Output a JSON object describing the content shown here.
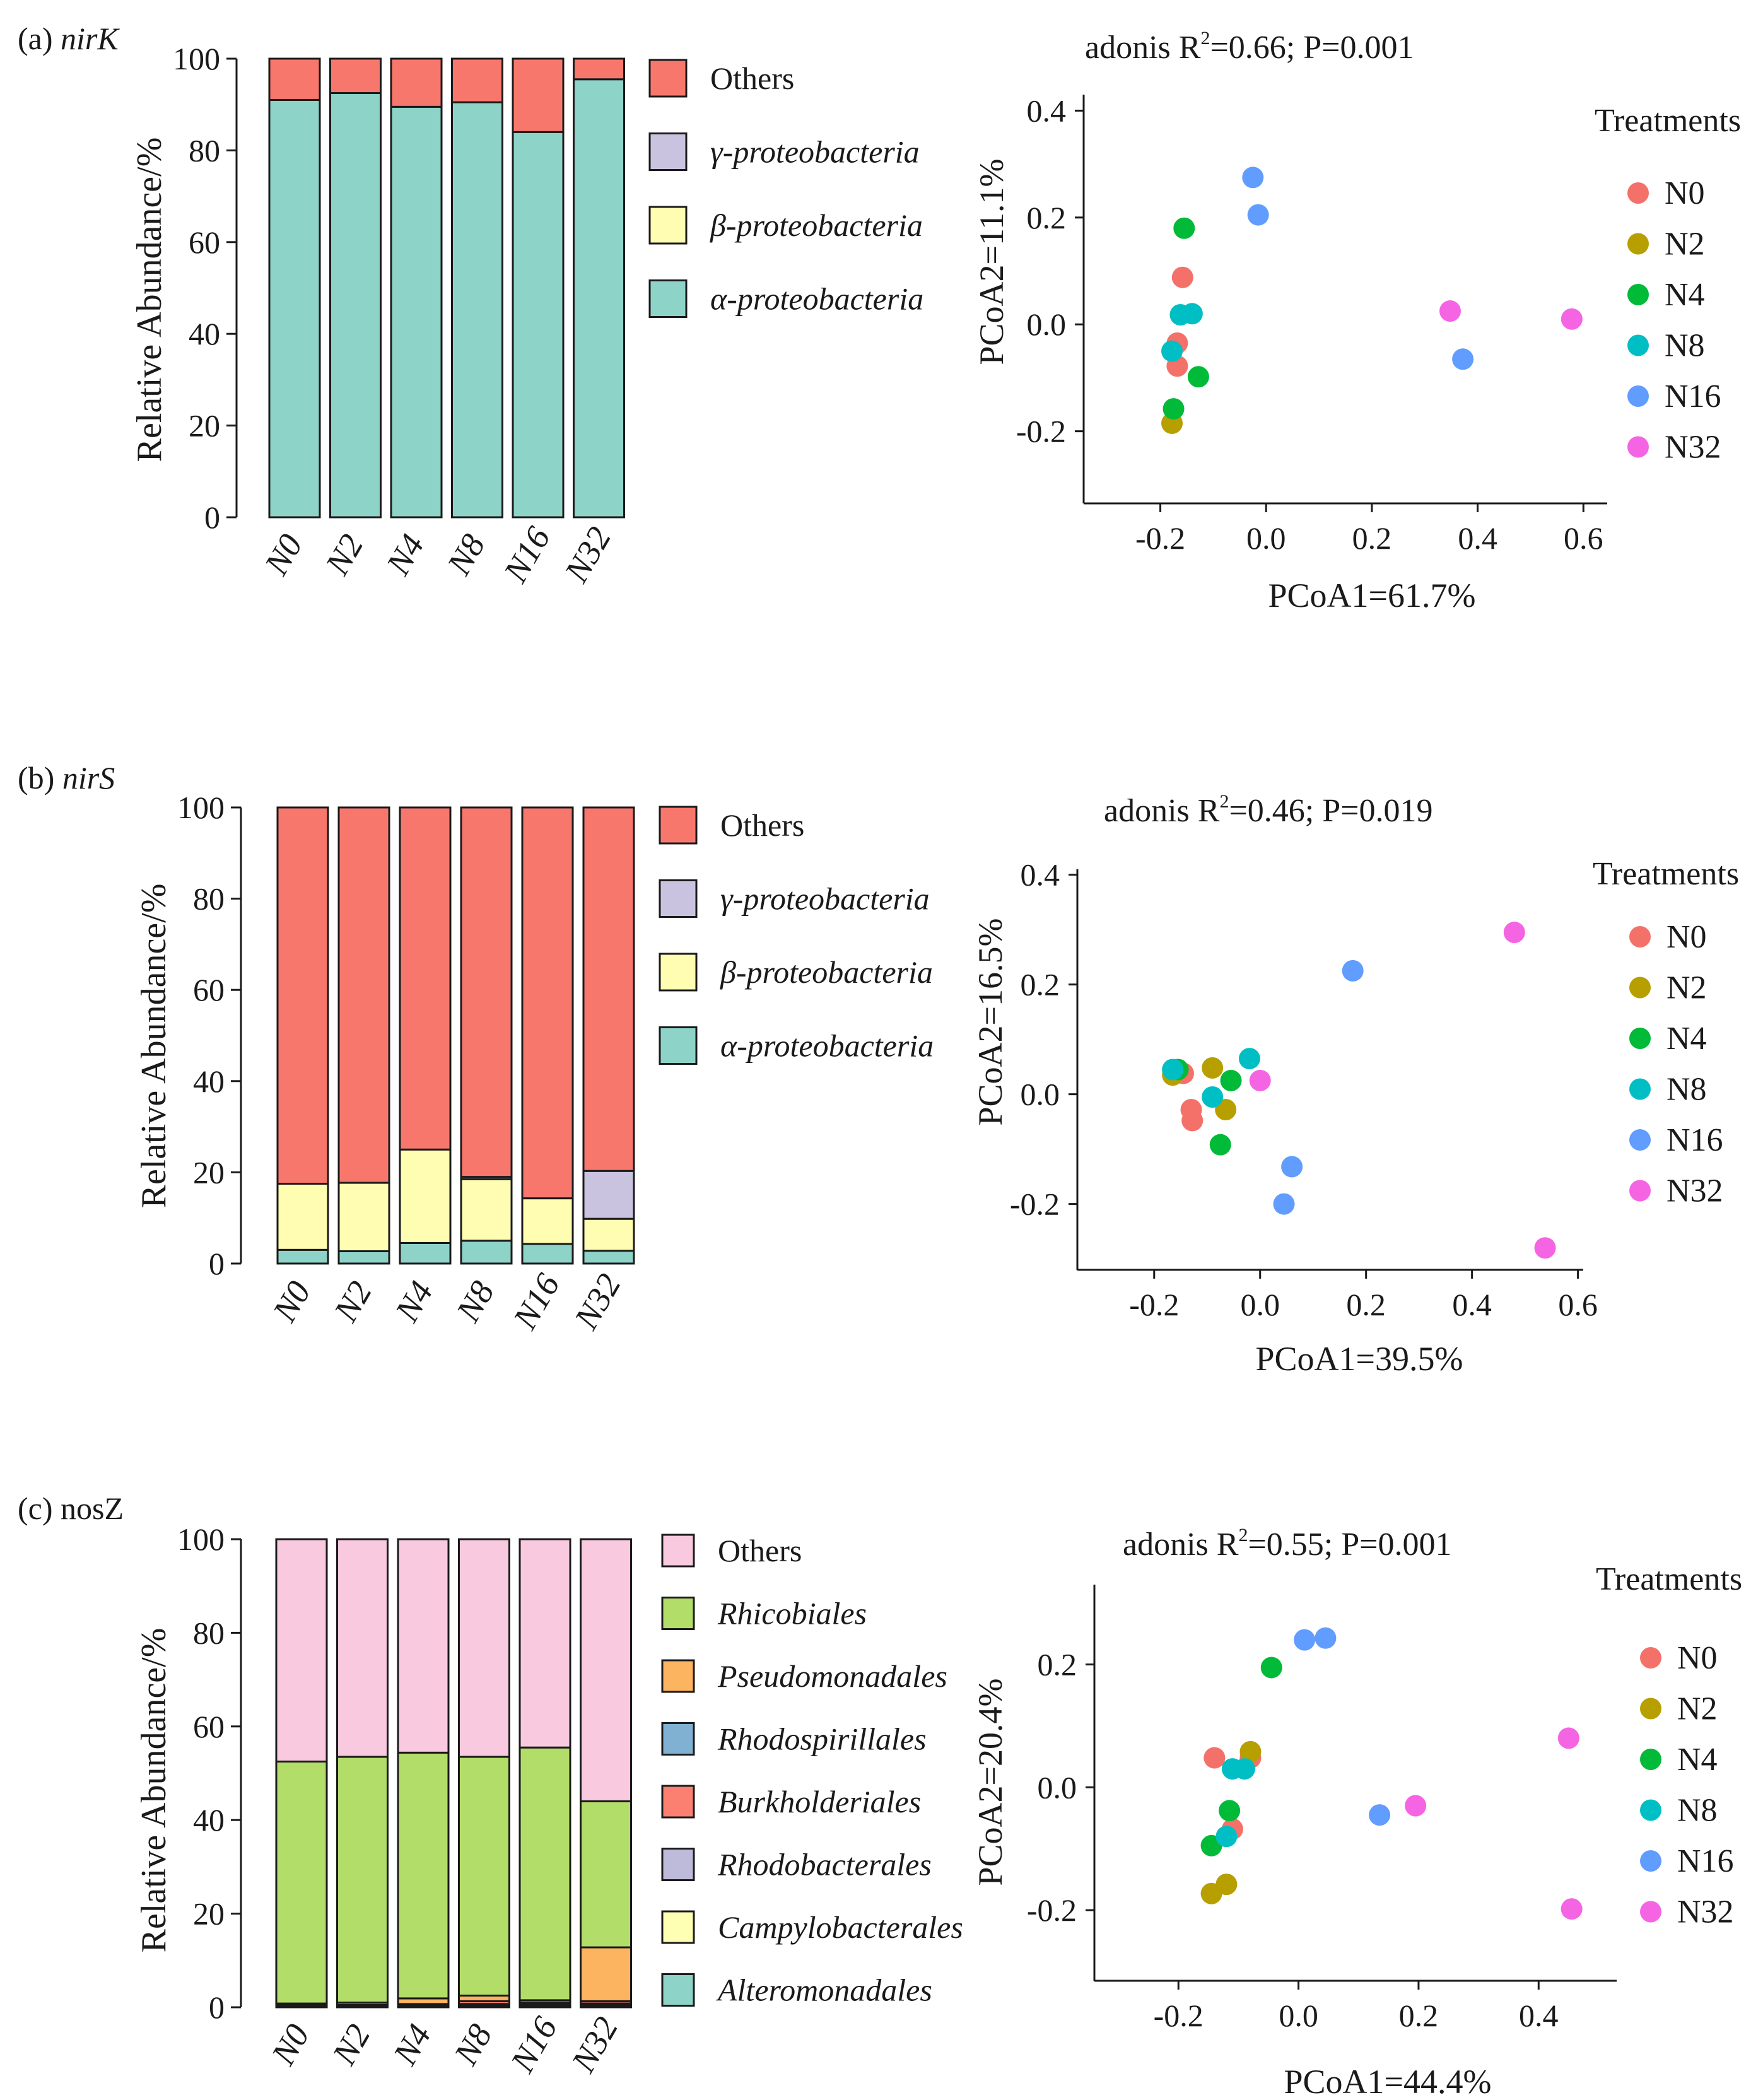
{
  "colors": {
    "others": "#f8776d",
    "gamma": "#c9c3df",
    "beta": "#fefdb1",
    "alpha": "#8dd3c7",
    "rhicobiales": "#b3dd69",
    "pseudomonadales": "#fcb461",
    "rhodospirillales": "#80b1d3",
    "burkholderiales": "#fb8072",
    "rhodobacterales": "#bebada",
    "campylobacterales": "#ffffb3",
    "alteromonadales": "#8dd3c7",
    "others_nosz": "#f9c9df",
    "N0": "#f47169",
    "N2": "#b79f00",
    "N4": "#00ba38",
    "N8": "#00bfc4",
    "N16": "#619cff",
    "N32": "#f564e3"
  },
  "chart_data": [
    {
      "id": "a-bar",
      "type": "bar",
      "stacked": true,
      "panel_label": "(a) ",
      "panel_gene": "nirK",
      "ylabel": "Relative Abundance/%",
      "ylim": [
        0,
        100
      ],
      "yticks": [
        0,
        20,
        40,
        60,
        80,
        100
      ],
      "categories": [
        "N0",
        "N2",
        "N4",
        "N8",
        "N16",
        "N32"
      ],
      "series": [
        {
          "name": "α-proteobacteria",
          "color_key": "alpha",
          "values": [
            91,
            92.5,
            89.5,
            90.5,
            84,
            95.5
          ]
        },
        {
          "name": "β-proteobacteria",
          "color_key": "beta",
          "values": [
            0,
            0,
            0,
            0,
            0,
            0
          ]
        },
        {
          "name": "γ-proteobacteria",
          "color_key": "gamma",
          "values": [
            0,
            0,
            0,
            0,
            0,
            0
          ]
        },
        {
          "name": "Others",
          "color_key": "others",
          "values": [
            9,
            7.5,
            10.5,
            9.5,
            16,
            4.5
          ]
        }
      ]
    },
    {
      "id": "a-pcoa",
      "type": "scatter",
      "title": "adonis R",
      "title_sup": "2",
      "title_rest": "=0.66; P=0.001",
      "xlabel": "PCoA1=61.7%",
      "ylabel": "PCoA2=11.1%",
      "xlim": [
        -0.345,
        0.645
      ],
      "ylim": [
        -0.335,
        0.43
      ],
      "xticks": [
        -0.2,
        0.0,
        0.2,
        0.4,
        0.6
      ],
      "xtick_labels": [
        "-0.2",
        "0.0",
        "0.2",
        "0.4",
        "0.6"
      ],
      "yticks": [
        -0.2,
        0.0,
        0.2,
        0.4
      ],
      "ytick_labels": [
        "-0.2",
        "0.0",
        "0.2",
        "0.4"
      ],
      "legend_title": "Treatments",
      "series": [
        {
          "name": "N0",
          "color_key": "N0",
          "points": [
            [
              -0.158,
              0.088
            ],
            [
              -0.168,
              -0.035
            ],
            [
              -0.168,
              -0.078
            ]
          ]
        },
        {
          "name": "N2",
          "color_key": "N2",
          "points": [
            [
              -0.178,
              -0.185
            ]
          ]
        },
        {
          "name": "N4",
          "color_key": "N4",
          "points": [
            [
              -0.155,
              0.18
            ],
            [
              -0.128,
              -0.098
            ],
            [
              -0.175,
              -0.158
            ]
          ]
        },
        {
          "name": "N8",
          "color_key": "N8",
          "points": [
            [
              -0.162,
              0.018
            ],
            [
              -0.14,
              0.02
            ],
            [
              -0.178,
              -0.05
            ]
          ]
        },
        {
          "name": "N16",
          "color_key": "N16",
          "points": [
            [
              -0.025,
              0.275
            ],
            [
              -0.015,
              0.205
            ],
            [
              0.372,
              -0.065
            ]
          ]
        },
        {
          "name": "N32",
          "color_key": "N32",
          "points": [
            [
              0.348,
              0.025
            ],
            [
              0.578,
              0.01
            ]
          ]
        }
      ]
    },
    {
      "id": "b-bar",
      "type": "bar",
      "stacked": true,
      "panel_label": "(b) ",
      "panel_gene": "nirS",
      "ylabel": "Relative Abundance/%",
      "ylim": [
        0,
        100
      ],
      "yticks": [
        0,
        20,
        40,
        60,
        80,
        100
      ],
      "categories": [
        "N0",
        "N2",
        "N4",
        "N8",
        "N16",
        "N32"
      ],
      "series": [
        {
          "name": "α-proteobacteria",
          "color_key": "alpha",
          "values": [
            3,
            2.7,
            4.5,
            5,
            4.3,
            2.8
          ]
        },
        {
          "name": "β-proteobacteria",
          "color_key": "beta",
          "values": [
            14.5,
            15,
            20.5,
            13.5,
            10,
            7
          ]
        },
        {
          "name": "γ-proteobacteria",
          "color_key": "gamma",
          "values": [
            0,
            0,
            0,
            0.5,
            0,
            10.5
          ]
        },
        {
          "name": "Others",
          "color_key": "others",
          "values": [
            82.5,
            82.3,
            75,
            81,
            85.7,
            79.7
          ]
        }
      ]
    },
    {
      "id": "b-pcoa",
      "type": "scatter",
      "title": "adonis R",
      "title_sup": "2",
      "title_rest": "=0.46; P=0.019",
      "xlabel": "PCoA1=39.5%",
      "ylabel": "PCoA2=16.5%",
      "xlim": [
        -0.345,
        0.61
      ],
      "ylim": [
        -0.32,
        0.41
      ],
      "xticks": [
        -0.2,
        0.0,
        0.2,
        0.4,
        0.6
      ],
      "xtick_labels": [
        "-0.2",
        "0.0",
        "0.2",
        "0.4",
        "0.6"
      ],
      "yticks": [
        -0.2,
        0.0,
        0.2,
        0.4
      ],
      "ytick_labels": [
        "-0.2",
        "0.0",
        "0.2",
        "0.4"
      ],
      "legend_title": "Treatments",
      "series": [
        {
          "name": "N0",
          "color_key": "N0",
          "points": [
            [
              -0.145,
              0.038
            ],
            [
              -0.13,
              -0.028
            ],
            [
              -0.128,
              -0.048
            ]
          ]
        },
        {
          "name": "N2",
          "color_key": "N2",
          "points": [
            [
              -0.165,
              0.035
            ],
            [
              -0.09,
              0.048
            ],
            [
              -0.065,
              -0.028
            ]
          ]
        },
        {
          "name": "N4",
          "color_key": "N4",
          "points": [
            [
              -0.155,
              0.045
            ],
            [
              -0.055,
              0.025
            ],
            [
              -0.075,
              -0.092
            ]
          ]
        },
        {
          "name": "N8",
          "color_key": "N8",
          "points": [
            [
              -0.165,
              0.045
            ],
            [
              -0.09,
              -0.005
            ],
            [
              -0.02,
              0.065
            ]
          ]
        },
        {
          "name": "N16",
          "color_key": "N16",
          "points": [
            [
              0.175,
              0.225
            ],
            [
              0.06,
              -0.132
            ],
            [
              0.045,
              -0.2
            ]
          ]
        },
        {
          "name": "N32",
          "color_key": "N32",
          "points": [
            [
              0.48,
              0.295
            ],
            [
              0.0,
              0.025
            ],
            [
              0.538,
              -0.28
            ]
          ]
        }
      ]
    },
    {
      "id": "c-bar",
      "type": "bar",
      "stacked": true,
      "panel_label": "(c) ",
      "panel_gene": "nosZ",
      "ylabel": "Relative Abundance/%",
      "ylim": [
        0,
        100
      ],
      "yticks": [
        0,
        20,
        40,
        60,
        80,
        100
      ],
      "categories": [
        "N0",
        "N2",
        "N4",
        "N8",
        "N16",
        "N32"
      ],
      "series": [
        {
          "name": "Alteromonadales",
          "color_key": "alteromonadales",
          "values": [
            0.2,
            0.2,
            0.2,
            0.2,
            0.2,
            0.3
          ]
        },
        {
          "name": "Campylobacterales",
          "color_key": "campylobacterales",
          "values": [
            0,
            0,
            0.2,
            0.3,
            0.2,
            0.3
          ]
        },
        {
          "name": "Rhodobacterales",
          "color_key": "rhodobacterales",
          "values": [
            0,
            0,
            0,
            0.2,
            0,
            0.2
          ]
        },
        {
          "name": "Burkholderiales",
          "color_key": "burkholderiales",
          "values": [
            0.3,
            0.3,
            0.3,
            0.6,
            0.3,
            0.5
          ]
        },
        {
          "name": "Rhodospirillales",
          "color_key": "rhodospirillales",
          "values": [
            0,
            0,
            0,
            0,
            0.3,
            0
          ]
        },
        {
          "name": "Pseudomonadales",
          "color_key": "pseudomonadales",
          "values": [
            0.3,
            0.5,
            1.2,
            1.2,
            0.5,
            11.5
          ]
        },
        {
          "name": "Rhicobiales",
          "color_key": "rhicobiales",
          "values": [
            51.7,
            52.5,
            52.5,
            51,
            54,
            31.2
          ]
        },
        {
          "name": "Others",
          "color_key": "others_nosz",
          "values": [
            47.5,
            46.5,
            45.6,
            46.5,
            44.5,
            56
          ]
        }
      ]
    },
    {
      "id": "c-pcoa",
      "type": "scatter",
      "title": "adonis R",
      "title_sup": "2",
      "title_rest": "=0.55; P=0.001",
      "xlabel": "PCoA1=44.4%",
      "ylabel": "PCoA2=20.4%",
      "xlim": [
        -0.34,
        0.53
      ],
      "ylim": [
        -0.315,
        0.33
      ],
      "xticks": [
        -0.2,
        0.0,
        0.2,
        0.4
      ],
      "xtick_labels": [
        "-0.2",
        "0.0",
        "0.2",
        "0.4"
      ],
      "yticks": [
        -0.2,
        0.0,
        0.2
      ],
      "ytick_labels": [
        "-0.2",
        "0.0",
        "0.2"
      ],
      "legend_title": "Treatments",
      "series": [
        {
          "name": "N0",
          "color_key": "N0",
          "points": [
            [
              -0.14,
              0.048
            ],
            [
              -0.08,
              0.048
            ],
            [
              -0.11,
              -0.068
            ]
          ]
        },
        {
          "name": "N2",
          "color_key": "N2",
          "points": [
            [
              -0.08,
              0.058
            ],
            [
              -0.145,
              -0.173
            ],
            [
              -0.12,
              -0.158
            ]
          ]
        },
        {
          "name": "N4",
          "color_key": "N4",
          "points": [
            [
              -0.045,
              0.195
            ],
            [
              -0.115,
              -0.038
            ],
            [
              -0.145,
              -0.095
            ]
          ]
        },
        {
          "name": "N8",
          "color_key": "N8",
          "points": [
            [
              -0.11,
              0.03
            ],
            [
              -0.09,
              0.03
            ],
            [
              -0.12,
              -0.08
            ]
          ]
        },
        {
          "name": "N16",
          "color_key": "N16",
          "points": [
            [
              0.01,
              0.24
            ],
            [
              0.045,
              0.243
            ],
            [
              0.135,
              -0.045
            ]
          ]
        },
        {
          "name": "N32",
          "color_key": "N32",
          "points": [
            [
              0.45,
              0.08
            ],
            [
              0.195,
              -0.03
            ],
            [
              0.455,
              -0.198
            ]
          ]
        }
      ]
    }
  ],
  "legends": {
    "a": [
      {
        "label": "Others",
        "color_key": "others",
        "italic": false
      },
      {
        "label": "γ-proteobacteria",
        "color_key": "gamma",
        "italic": true
      },
      {
        "label": "β-proteobacteria",
        "color_key": "beta",
        "italic": true
      },
      {
        "label": "α-proteobacteria",
        "color_key": "alpha",
        "italic": true
      }
    ],
    "b": [
      {
        "label": "Others",
        "color_key": "others",
        "italic": false
      },
      {
        "label": "γ-proteobacteria",
        "color_key": "gamma",
        "italic": true
      },
      {
        "label": "β-proteobacteria",
        "color_key": "beta",
        "italic": true
      },
      {
        "label": "α-proteobacteria",
        "color_key": "alpha",
        "italic": true
      }
    ],
    "c": [
      {
        "label": "Others",
        "color_key": "others_nosz",
        "italic": false
      },
      {
        "label": "Rhicobiales",
        "color_key": "rhicobiales",
        "italic": true
      },
      {
        "label": "Pseudomonadales",
        "color_key": "pseudomonadales",
        "italic": true
      },
      {
        "label": "Rhodospirillales",
        "color_key": "rhodospirillales",
        "italic": true
      },
      {
        "label": "Burkholderiales",
        "color_key": "burkholderiales",
        "italic": true
      },
      {
        "label": "Rhodobacterales",
        "color_key": "rhodobacterales",
        "italic": true
      },
      {
        "label": "Campylobacterales",
        "color_key": "campylobacterales",
        "italic": true
      },
      {
        "label": "Alteromonadales",
        "color_key": "alteromonadales",
        "italic": true
      }
    ]
  }
}
